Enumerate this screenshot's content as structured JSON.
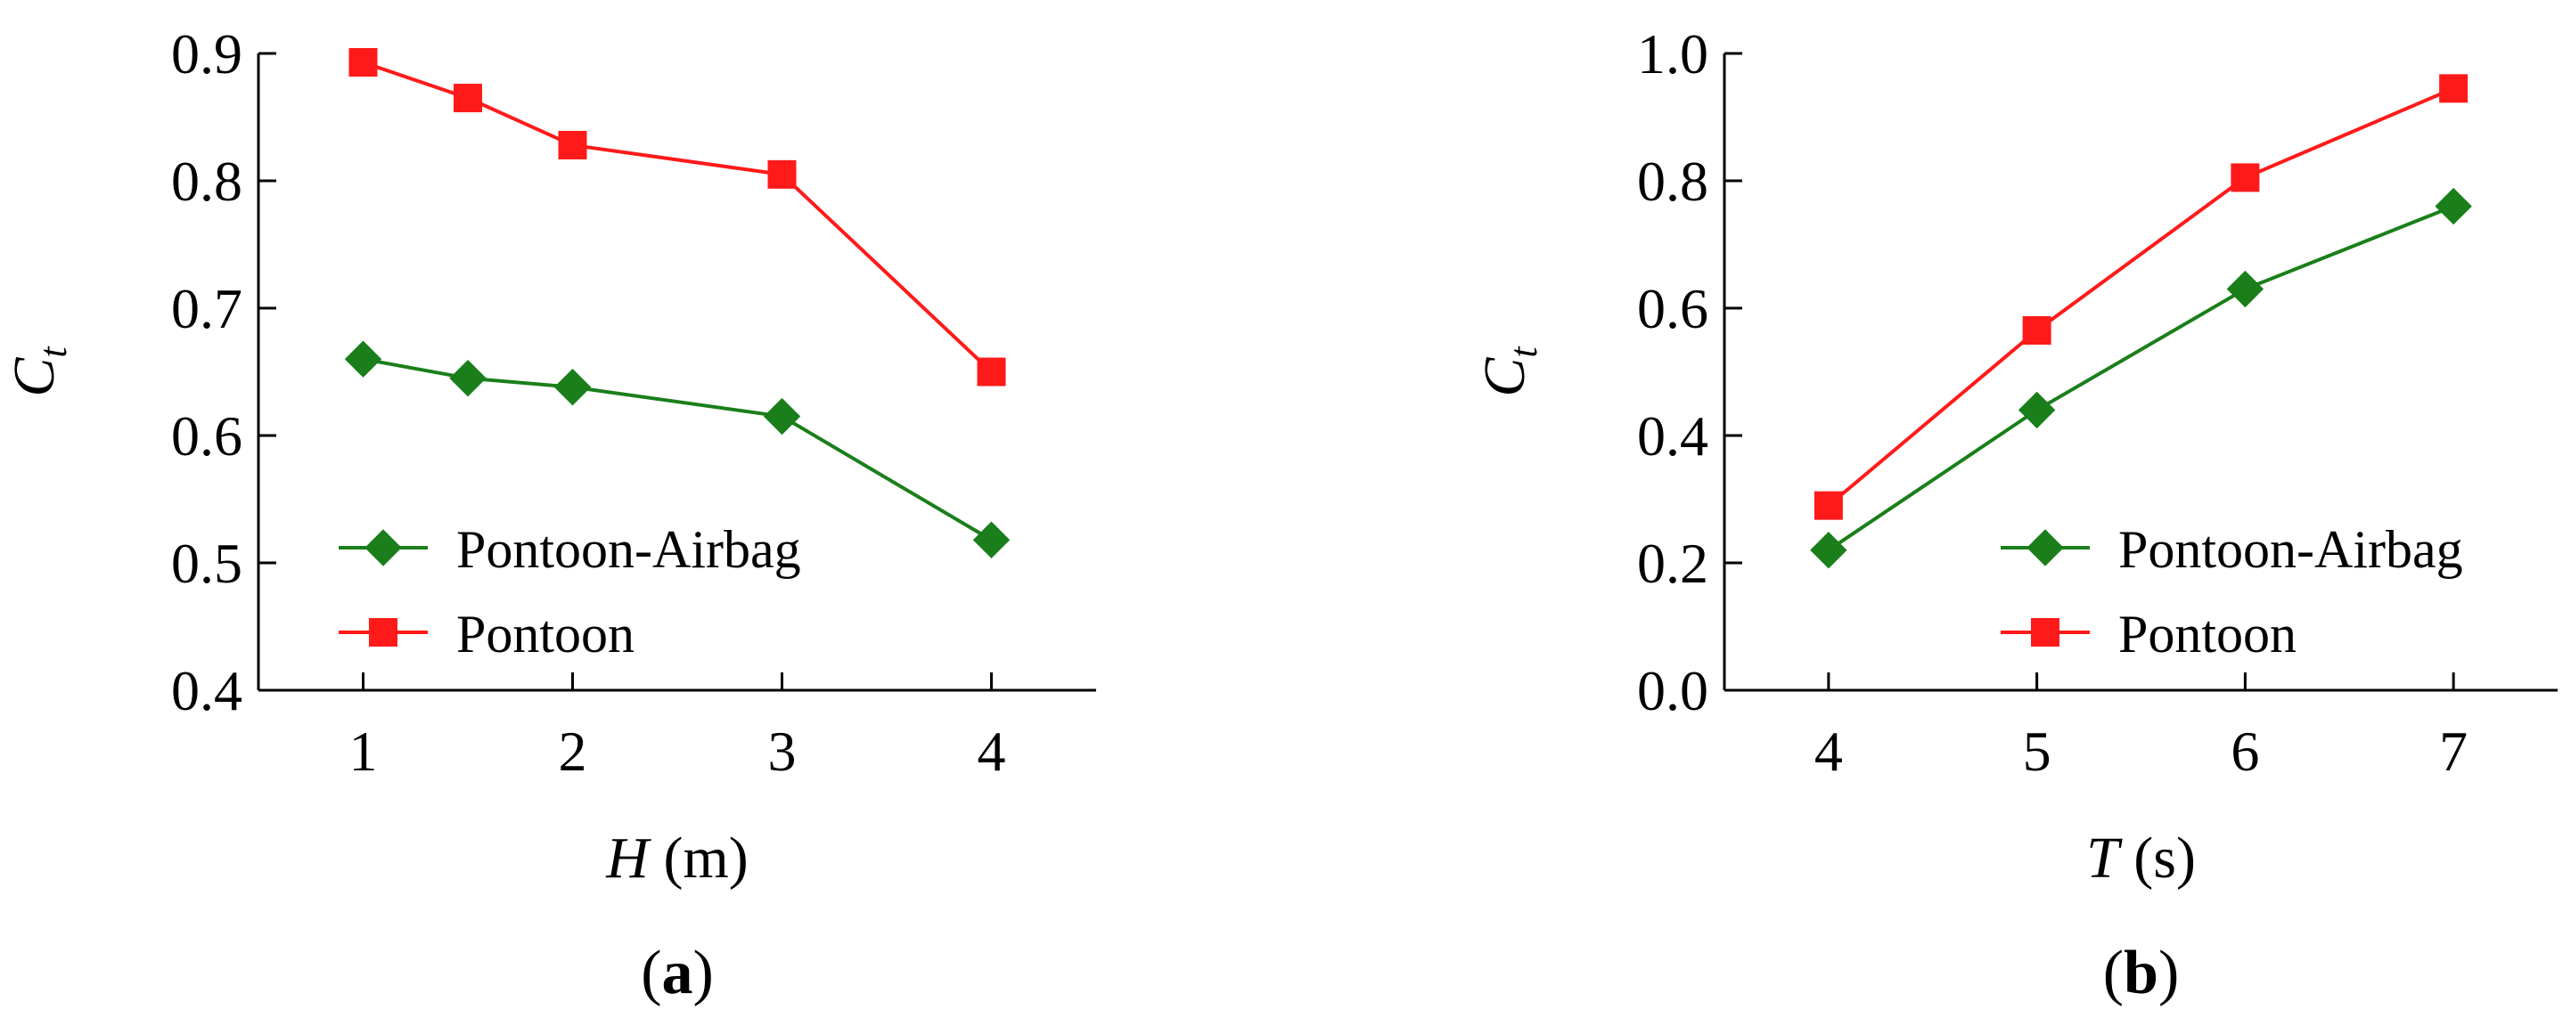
{
  "chart_data": [
    {
      "type": "line",
      "panel_label": "a",
      "xlabel": {
        "symbol": "H",
        "unit": "(m)"
      },
      "ylabel": {
        "symbol": "C",
        "subscript": "t"
      },
      "xlim": [
        0.5,
        4.5
      ],
      "ylim": [
        0.4,
        0.9
      ],
      "xticks": [
        1,
        2,
        3,
        4
      ],
      "yticks": [
        "0.4",
        "0.5",
        "0.6",
        "0.7",
        "0.8",
        "0.9"
      ],
      "grid": false,
      "legend_position": "bottom-left",
      "series": [
        {
          "name": "Pontoon-Airbag",
          "color": "#1a7f1a",
          "marker": "diamond",
          "x": [
            1,
            1.5,
            2,
            3,
            4
          ],
          "y": [
            0.66,
            0.645,
            0.638,
            0.615,
            0.518
          ]
        },
        {
          "name": "Pontoon",
          "color": "#ff1a1a",
          "marker": "square",
          "x": [
            1,
            1.5,
            2,
            3,
            4
          ],
          "y": [
            0.893,
            0.865,
            0.828,
            0.805,
            0.65
          ]
        }
      ]
    },
    {
      "type": "line",
      "panel_label": "b",
      "xlabel": {
        "symbol": "T",
        "unit": "(s)"
      },
      "ylabel": {
        "symbol": "C",
        "subscript": "t"
      },
      "xlim": [
        3.5,
        7.5
      ],
      "ylim": [
        0.0,
        1.0
      ],
      "xticks": [
        4,
        5,
        6,
        7
      ],
      "yticks": [
        "0.0",
        "0.2",
        "0.4",
        "0.6",
        "0.8",
        "1.0"
      ],
      "grid": false,
      "legend_position": "bottom-right",
      "series": [
        {
          "name": "Pontoon-Airbag",
          "color": "#1a7f1a",
          "marker": "diamond",
          "x": [
            4,
            5,
            6,
            7
          ],
          "y": [
            0.22,
            0.44,
            0.63,
            0.76
          ]
        },
        {
          "name": "Pontoon",
          "color": "#ff1a1a",
          "marker": "square",
          "x": [
            4,
            5,
            6,
            7
          ],
          "y": [
            0.29,
            0.565,
            0.805,
            0.945
          ]
        }
      ]
    }
  ]
}
